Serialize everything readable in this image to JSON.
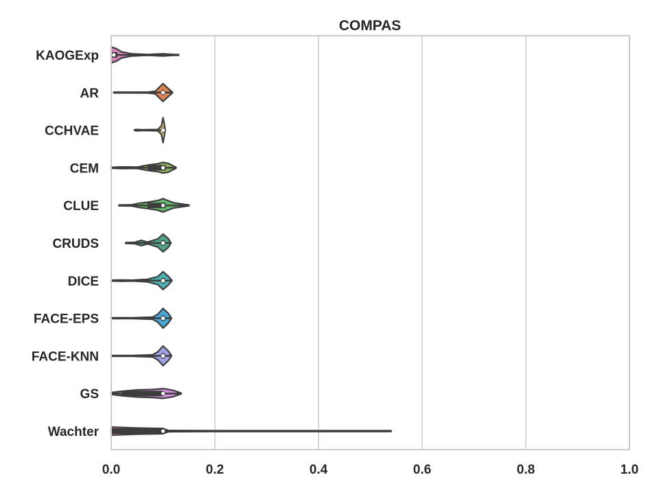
{
  "chart_data": {
    "type": "violin",
    "title": "COMPAS",
    "xlabel": "",
    "ylabel": "",
    "xlim": [
      0.0,
      1.0
    ],
    "xticks": [
      "0.0",
      "0.2",
      "0.4",
      "0.6",
      "0.8",
      "1.0"
    ],
    "grid": "vertical",
    "orientation": "horizontal",
    "categories": [
      "KAOGExp",
      "AR",
      "CCHVAE",
      "CEM",
      "CLUE",
      "CRUDS",
      "DICE",
      "FACE-EPS",
      "FACE-KNN",
      "GS",
      "Wachter"
    ],
    "series": [
      {
        "category": "KAOGExp",
        "color": "#d684bd",
        "range": [
          0.0,
          0.13
        ],
        "median": 0.005,
        "iqr": [
          0.0,
          0.012
        ],
        "density": [
          [
            0.0,
            0.9
          ],
          [
            0.01,
            0.7
          ],
          [
            0.02,
            0.35
          ],
          [
            0.04,
            0.12
          ],
          [
            0.07,
            0.05
          ],
          [
            0.1,
            0.12
          ],
          [
            0.12,
            0.05
          ],
          [
            0.13,
            0.0
          ]
        ]
      },
      {
        "category": "AR",
        "color": "#dd8452",
        "range": [
          0.005,
          0.118
        ],
        "median": 0.1,
        "iqr": [
          0.098,
          0.102
        ],
        "density": [
          [
            0.005,
            0.0
          ],
          [
            0.03,
            0.03
          ],
          [
            0.07,
            0.05
          ],
          [
            0.085,
            0.15
          ],
          [
            0.1,
            1.0
          ],
          [
            0.11,
            0.45
          ],
          [
            0.118,
            0.0
          ]
        ]
      },
      {
        "category": "CCHVAE",
        "color": "#ccb974",
        "range": [
          0.045,
          0.104
        ],
        "median": 0.1,
        "iqr": [
          0.099,
          0.101
        ],
        "density": [
          [
            0.045,
            0.0
          ],
          [
            0.05,
            0.08
          ],
          [
            0.06,
            0.04
          ],
          [
            0.09,
            0.08
          ],
          [
            0.097,
            0.5
          ],
          [
            0.1,
            1.4
          ],
          [
            0.103,
            0.5
          ],
          [
            0.104,
            0.0
          ]
        ]
      },
      {
        "category": "CEM",
        "color": "#8db35f",
        "range": [
          0.0,
          0.125
        ],
        "median": 0.1,
        "iqr": [
          0.07,
          0.105
        ],
        "density": [
          [
            0.0,
            0.05
          ],
          [
            0.02,
            0.1
          ],
          [
            0.05,
            0.08
          ],
          [
            0.07,
            0.3
          ],
          [
            0.09,
            0.45
          ],
          [
            0.1,
            0.6
          ],
          [
            0.11,
            0.5
          ],
          [
            0.125,
            0.0
          ]
        ]
      },
      {
        "category": "CLUE",
        "color": "#66b86a",
        "range": [
          0.015,
          0.15
        ],
        "median": 0.1,
        "iqr": [
          0.07,
          0.105
        ],
        "density": [
          [
            0.015,
            0.0
          ],
          [
            0.04,
            0.08
          ],
          [
            0.055,
            0.25
          ],
          [
            0.07,
            0.35
          ],
          [
            0.09,
            0.55
          ],
          [
            0.1,
            0.75
          ],
          [
            0.12,
            0.3
          ],
          [
            0.15,
            0.0
          ]
        ]
      },
      {
        "category": "CRUDS",
        "color": "#50a485",
        "range": [
          0.028,
          0.115
        ],
        "median": 0.1,
        "iqr": [
          0.097,
          0.103
        ],
        "density": [
          [
            0.028,
            0.0
          ],
          [
            0.045,
            0.08
          ],
          [
            0.058,
            0.3
          ],
          [
            0.07,
            0.1
          ],
          [
            0.09,
            0.45
          ],
          [
            0.1,
            1.0
          ],
          [
            0.11,
            0.5
          ],
          [
            0.115,
            0.0
          ]
        ]
      },
      {
        "category": "DICE",
        "color": "#4cb1b4",
        "range": [
          0.0,
          0.117
        ],
        "median": 0.1,
        "iqr": [
          0.097,
          0.103
        ],
        "density": [
          [
            0.0,
            0.05
          ],
          [
            0.02,
            0.08
          ],
          [
            0.04,
            0.05
          ],
          [
            0.07,
            0.15
          ],
          [
            0.09,
            0.45
          ],
          [
            0.1,
            1.0
          ],
          [
            0.11,
            0.5
          ],
          [
            0.117,
            0.0
          ]
        ]
      },
      {
        "category": "FACE-EPS",
        "color": "#4aa6d2",
        "range": [
          0.0,
          0.116
        ],
        "median": 0.1,
        "iqr": [
          0.097,
          0.103
        ],
        "density": [
          [
            0.0,
            0.05
          ],
          [
            0.04,
            0.05
          ],
          [
            0.08,
            0.12
          ],
          [
            0.09,
            0.45
          ],
          [
            0.1,
            1.1
          ],
          [
            0.11,
            0.55
          ],
          [
            0.116,
            0.0
          ]
        ]
      },
      {
        "category": "FACE-KNN",
        "color": "#9fa0e6",
        "range": [
          0.0,
          0.116
        ],
        "median": 0.1,
        "iqr": [
          0.097,
          0.103
        ],
        "density": [
          [
            0.0,
            0.05
          ],
          [
            0.04,
            0.05
          ],
          [
            0.08,
            0.12
          ],
          [
            0.09,
            0.45
          ],
          [
            0.1,
            1.1
          ],
          [
            0.11,
            0.55
          ],
          [
            0.116,
            0.0
          ]
        ]
      },
      {
        "category": "GS",
        "color": "#d48fdd",
        "range": [
          0.0,
          0.135
        ],
        "median": 0.1,
        "iqr": [
          0.02,
          0.1
        ],
        "density": [
          [
            0.0,
            0.1
          ],
          [
            0.02,
            0.25
          ],
          [
            0.05,
            0.4
          ],
          [
            0.08,
            0.45
          ],
          [
            0.1,
            0.55
          ],
          [
            0.12,
            0.35
          ],
          [
            0.135,
            0.0
          ]
        ]
      },
      {
        "category": "Wachter",
        "color": "#e07bb6",
        "range": [
          0.0,
          0.54
        ],
        "median": 0.1,
        "iqr": [
          0.0,
          0.1
        ],
        "density": [
          [
            0.0,
            0.45
          ],
          [
            0.05,
            0.35
          ],
          [
            0.1,
            0.3
          ],
          [
            0.11,
            0.08
          ],
          [
            0.2,
            0.04
          ],
          [
            0.4,
            0.03
          ],
          [
            0.54,
            0.0
          ]
        ]
      }
    ]
  },
  "colors": {
    "axis_frame": "#cccccc",
    "grid": "#cccccc",
    "outline": "#3d3d3d",
    "text": "#262626",
    "median_marker": "#ffffff"
  }
}
